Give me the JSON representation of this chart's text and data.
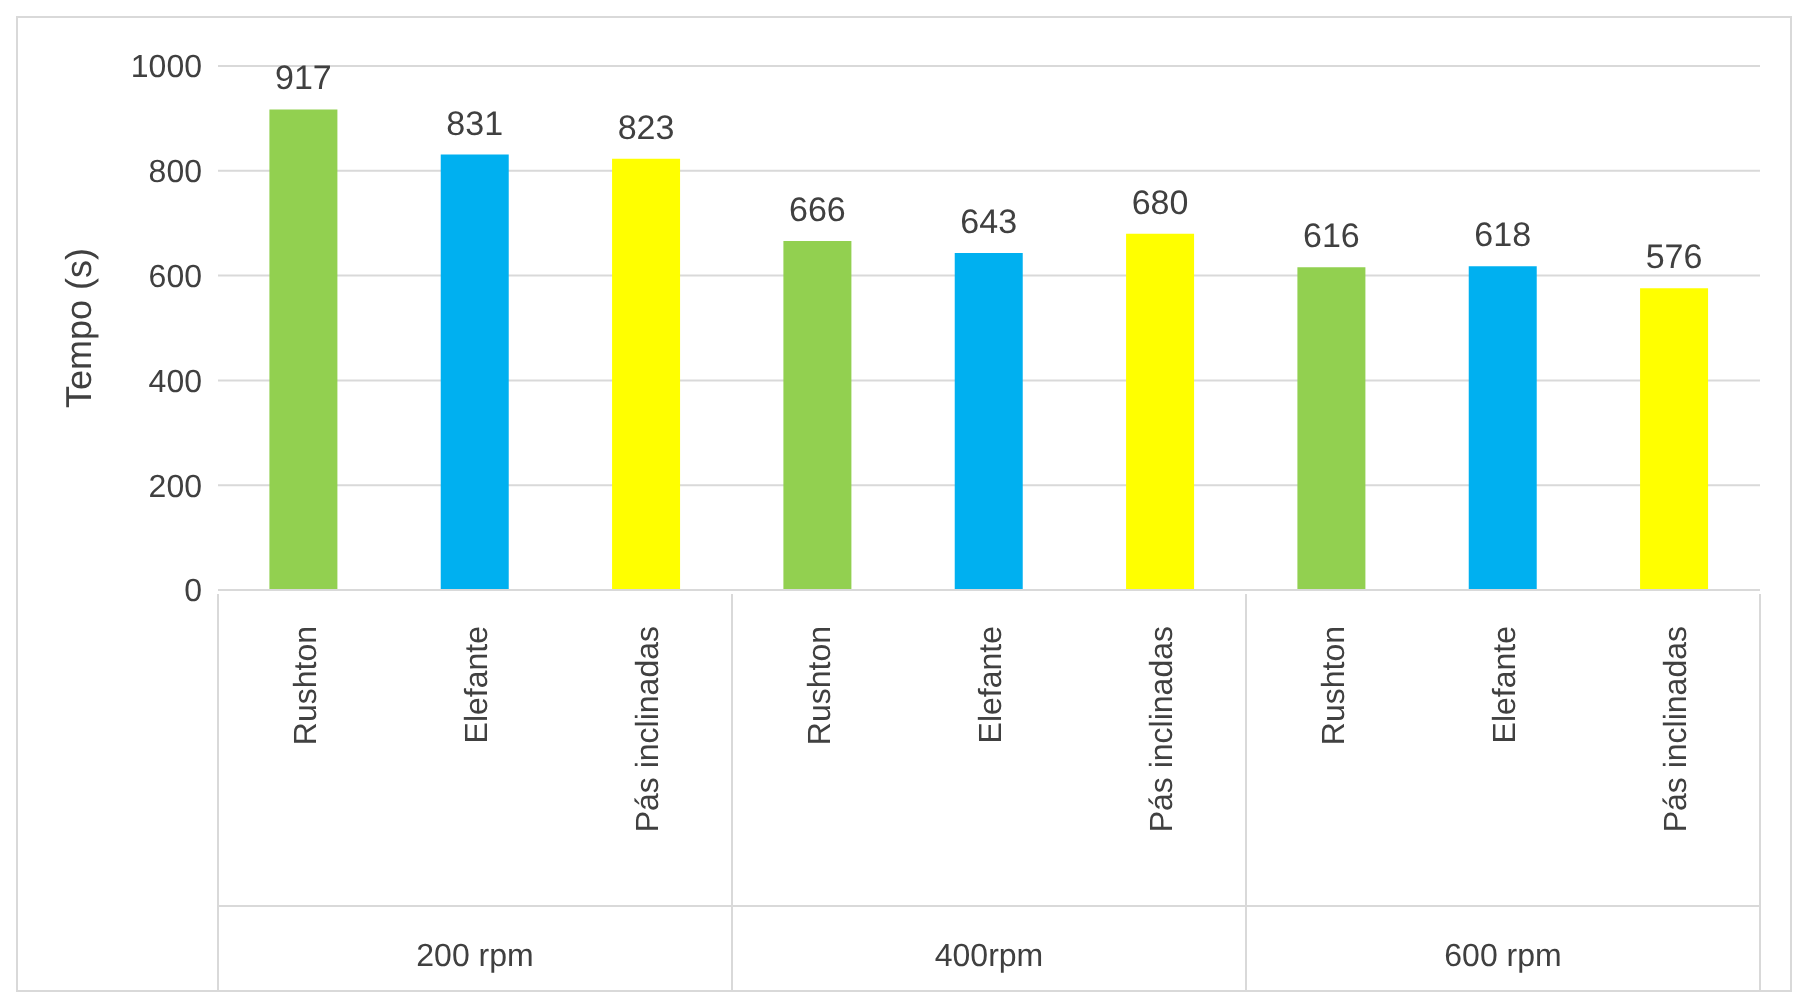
{
  "chart_data": {
    "type": "bar",
    "ylabel": "Tempo (s)",
    "categories": [
      "Rushton",
      "Elefante",
      "Pás inclinadas",
      "Rushton",
      "Elefante",
      "Pás inclinadas",
      "Rushton",
      "Elefante",
      "Pás inclinadas"
    ],
    "values": [
      917,
      831,
      823,
      666,
      643,
      680,
      616,
      618,
      576
    ],
    "colors": [
      "#92d050",
      "#00b0f0",
      "#ffff00",
      "#92d050",
      "#00b0f0",
      "#ffff00",
      "#92d050",
      "#00b0f0",
      "#ffff00"
    ],
    "annotations": [
      "200 rpm",
      "400rpm",
      "600 rpm"
    ],
    "ylim": [
      0,
      1000
    ],
    "yticks": [
      0,
      200,
      400,
      600,
      800,
      1000
    ],
    "grid": "y",
    "data_labels": true,
    "legend": false
  }
}
